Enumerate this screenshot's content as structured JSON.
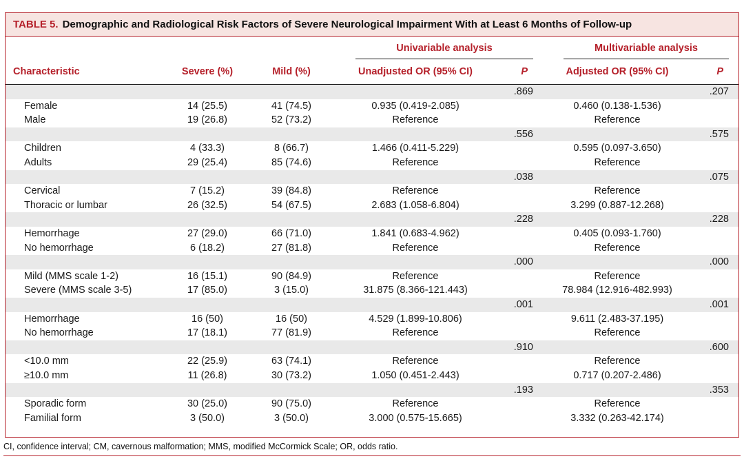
{
  "table": {
    "label": "TABLE 5.",
    "title": "Demographic and Radiological Risk Factors of Severe Neurological Impairment With at Least 6 Months of Follow-up",
    "group_headers": {
      "univariable": "Univariable analysis",
      "multivariable": "Multivariable analysis"
    },
    "columns": {
      "characteristic": "Characteristic",
      "severe": "Severe (%)",
      "mild": "Mild (%)",
      "unadjusted_or": "Unadjusted OR (95% CI)",
      "p_uni": "P",
      "adjusted_or": "Adjusted OR (95% CI)",
      "p_multi": "P"
    },
    "rows": [
      {
        "characteristic": "",
        "severe": "",
        "mild": "",
        "unadjusted_or": "",
        "p_uni": ".869",
        "adjusted_or": "",
        "p_multi": ".207"
      },
      {
        "characteristic": "Female",
        "severe": "14 (25.5)",
        "mild": "41 (74.5)",
        "unadjusted_or": "0.935 (0.419-2.085)",
        "p_uni": "",
        "adjusted_or": "0.460 (0.138-1.536)",
        "p_multi": ""
      },
      {
        "characteristic": "Male",
        "severe": "19 (26.8)",
        "mild": "52 (73.2)",
        "unadjusted_or": "Reference",
        "p_uni": "",
        "adjusted_or": "Reference",
        "p_multi": ""
      },
      {
        "characteristic": "",
        "severe": "",
        "mild": "",
        "unadjusted_or": "",
        "p_uni": ".556",
        "adjusted_or": "",
        "p_multi": ".575"
      },
      {
        "characteristic": "Children",
        "severe": "4 (33.3)",
        "mild": "8 (66.7)",
        "unadjusted_or": "1.466 (0.411-5.229)",
        "p_uni": "",
        "adjusted_or": "0.595 (0.097-3.650)",
        "p_multi": ""
      },
      {
        "characteristic": "Adults",
        "severe": "29 (25.4)",
        "mild": "85 (74.6)",
        "unadjusted_or": "Reference",
        "p_uni": "",
        "adjusted_or": "Reference",
        "p_multi": ""
      },
      {
        "characteristic": "",
        "severe": "",
        "mild": "",
        "unadjusted_or": "",
        "p_uni": ".038",
        "adjusted_or": "",
        "p_multi": ".075"
      },
      {
        "characteristic": "Cervical",
        "severe": "7 (15.2)",
        "mild": "39 (84.8)",
        "unadjusted_or": "Reference",
        "p_uni": "",
        "adjusted_or": "Reference",
        "p_multi": ""
      },
      {
        "characteristic": "Thoracic or lumbar",
        "severe": "26 (32.5)",
        "mild": "54 (67.5)",
        "unadjusted_or": "2.683 (1.058-6.804)",
        "p_uni": "",
        "adjusted_or": "3.299 (0.887-12.268)",
        "p_multi": ""
      },
      {
        "characteristic": "",
        "severe": "",
        "mild": "",
        "unadjusted_or": "",
        "p_uni": ".228",
        "adjusted_or": "",
        "p_multi": ".228"
      },
      {
        "characteristic": "Hemorrhage",
        "severe": "27 (29.0)",
        "mild": "66 (71.0)",
        "unadjusted_or": "1.841 (0.683-4.962)",
        "p_uni": "",
        "adjusted_or": "0.405 (0.093-1.760)",
        "p_multi": ""
      },
      {
        "characteristic": "No hemorrhage",
        "severe": "6 (18.2)",
        "mild": "27 (81.8)",
        "unadjusted_or": "Reference",
        "p_uni": "",
        "adjusted_or": "Reference",
        "p_multi": ""
      },
      {
        "characteristic": "",
        "severe": "",
        "mild": "",
        "unadjusted_or": "",
        "p_uni": ".000",
        "adjusted_or": "",
        "p_multi": ".000"
      },
      {
        "characteristic": "Mild (MMS scale 1-2)",
        "severe": "16 (15.1)",
        "mild": "90 (84.9)",
        "unadjusted_or": "Reference",
        "p_uni": "",
        "adjusted_or": "Reference",
        "p_multi": ""
      },
      {
        "characteristic": "Severe (MMS scale 3-5)",
        "severe": "17 (85.0)",
        "mild": "3 (15.0)",
        "unadjusted_or": "31.875 (8.366-121.443)",
        "p_uni": "",
        "adjusted_or": "78.984 (12.916-482.993)",
        "p_multi": ""
      },
      {
        "characteristic": "",
        "severe": "",
        "mild": "",
        "unadjusted_or": "",
        "p_uni": ".001",
        "adjusted_or": "",
        "p_multi": ".001"
      },
      {
        "characteristic": "Hemorrhage",
        "severe": "16 (50)",
        "mild": "16 (50)",
        "unadjusted_or": "4.529 (1.899-10.806)",
        "p_uni": "",
        "adjusted_or": "9.611 (2.483-37.195)",
        "p_multi": ""
      },
      {
        "characteristic": "No hemorrhage",
        "severe": "17 (18.1)",
        "mild": "77 (81.9)",
        "unadjusted_or": "Reference",
        "p_uni": "",
        "adjusted_or": "Reference",
        "p_multi": ""
      },
      {
        "characteristic": "",
        "severe": "",
        "mild": "",
        "unadjusted_or": "",
        "p_uni": ".910",
        "adjusted_or": "",
        "p_multi": ".600"
      },
      {
        "characteristic": "<10.0 mm",
        "severe": "22 (25.9)",
        "mild": "63 (74.1)",
        "unadjusted_or": "Reference",
        "p_uni": "",
        "adjusted_or": "Reference",
        "p_multi": ""
      },
      {
        "characteristic": "≥10.0 mm",
        "severe": "11 (26.8)",
        "mild": "30 (73.2)",
        "unadjusted_or": "1.050 (0.451-2.443)",
        "p_uni": "",
        "adjusted_or": "0.717 (0.207-2.486)",
        "p_multi": ""
      },
      {
        "characteristic": "",
        "severe": "",
        "mild": "",
        "unadjusted_or": "",
        "p_uni": ".193",
        "adjusted_or": "",
        "p_multi": ".353"
      },
      {
        "characteristic": "Sporadic form",
        "severe": "30 (25.0)",
        "mild": "90 (75.0)",
        "unadjusted_or": "Reference",
        "p_uni": "",
        "adjusted_or": "Reference",
        "p_multi": ""
      },
      {
        "characteristic": "Familial form",
        "severe": "3 (50.0)",
        "mild": "3 (50.0)",
        "unadjusted_or": "3.000 (0.575-15.665)",
        "p_uni": "",
        "adjusted_or": "3.332 (0.263-42.174)",
        "p_multi": ""
      }
    ],
    "footnote": "CI, confidence interval; CM, cavernous malformation; MMS, modified McCormick Scale; OR, odds ratio."
  },
  "colors": {
    "accent": "#b5202a",
    "title_background": "#f7e4e1",
    "shaded_row": "#e9e9e9"
  }
}
